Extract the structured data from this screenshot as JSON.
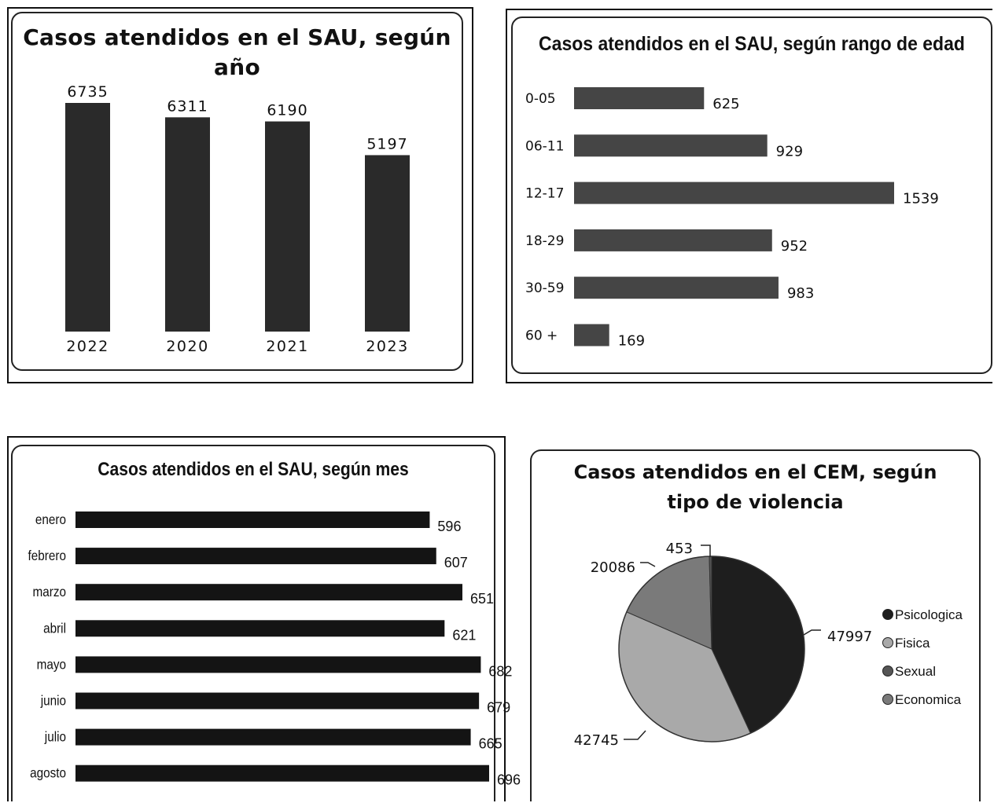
{
  "chart_data": [
    {
      "type": "bar",
      "title": "Casos atendidos en el SAU, según año",
      "categories": [
        "2022",
        "2020",
        "2021",
        "2023"
      ],
      "values": [
        6735,
        6311,
        6190,
        5197
      ],
      "data_labels": [
        "6735",
        "6311",
        "6190",
        "5197"
      ],
      "ylim": [
        0,
        6735
      ],
      "bar_color": "#2a2a2a",
      "grid": false,
      "legend": "none"
    },
    {
      "type": "bar",
      "orientation": "horizontal",
      "title": "Casos atendidos en el SAU, según rango de edad",
      "categories": [
        "0-05",
        "06-11",
        "12-17",
        "18-29",
        "30-59",
        "60 +"
      ],
      "values": [
        625,
        929,
        1539,
        952,
        983,
        169
      ],
      "data_labels": [
        "625",
        "929",
        "1539",
        "952",
        "983",
        "169"
      ],
      "xlim": [
        0,
        1539
      ],
      "bar_color": "#454545",
      "grid": false,
      "legend": "none"
    },
    {
      "type": "bar",
      "orientation": "horizontal",
      "title": "Casos atendidos en el SAU, según mes",
      "categories": [
        "enero",
        "febrero",
        "marzo",
        "abril",
        "mayo",
        "junio",
        "julio",
        "agosto"
      ],
      "values": [
        596,
        607,
        651,
        621,
        682,
        679,
        665,
        696
      ],
      "data_labels": [
        "596",
        "607",
        "651",
        "621",
        "682",
        "679",
        "665",
        "696"
      ],
      "xlim": [
        0,
        696
      ],
      "bar_color": "#141414",
      "grid": false,
      "legend": "none"
    },
    {
      "type": "pie",
      "title": "Casos atendidos en el CEM, según tipo de violencia",
      "categories": [
        "Psicologica",
        "Fisica",
        "Sexual",
        "Economica"
      ],
      "values": [
        47997,
        42745,
        453,
        20086
      ],
      "data_labels": [
        "47997",
        "42745",
        "453",
        "20086"
      ],
      "colors": [
        "#1e1e1e",
        "#a9a9a9",
        "#555555",
        "#7a7a7a"
      ],
      "legend": "right"
    }
  ]
}
